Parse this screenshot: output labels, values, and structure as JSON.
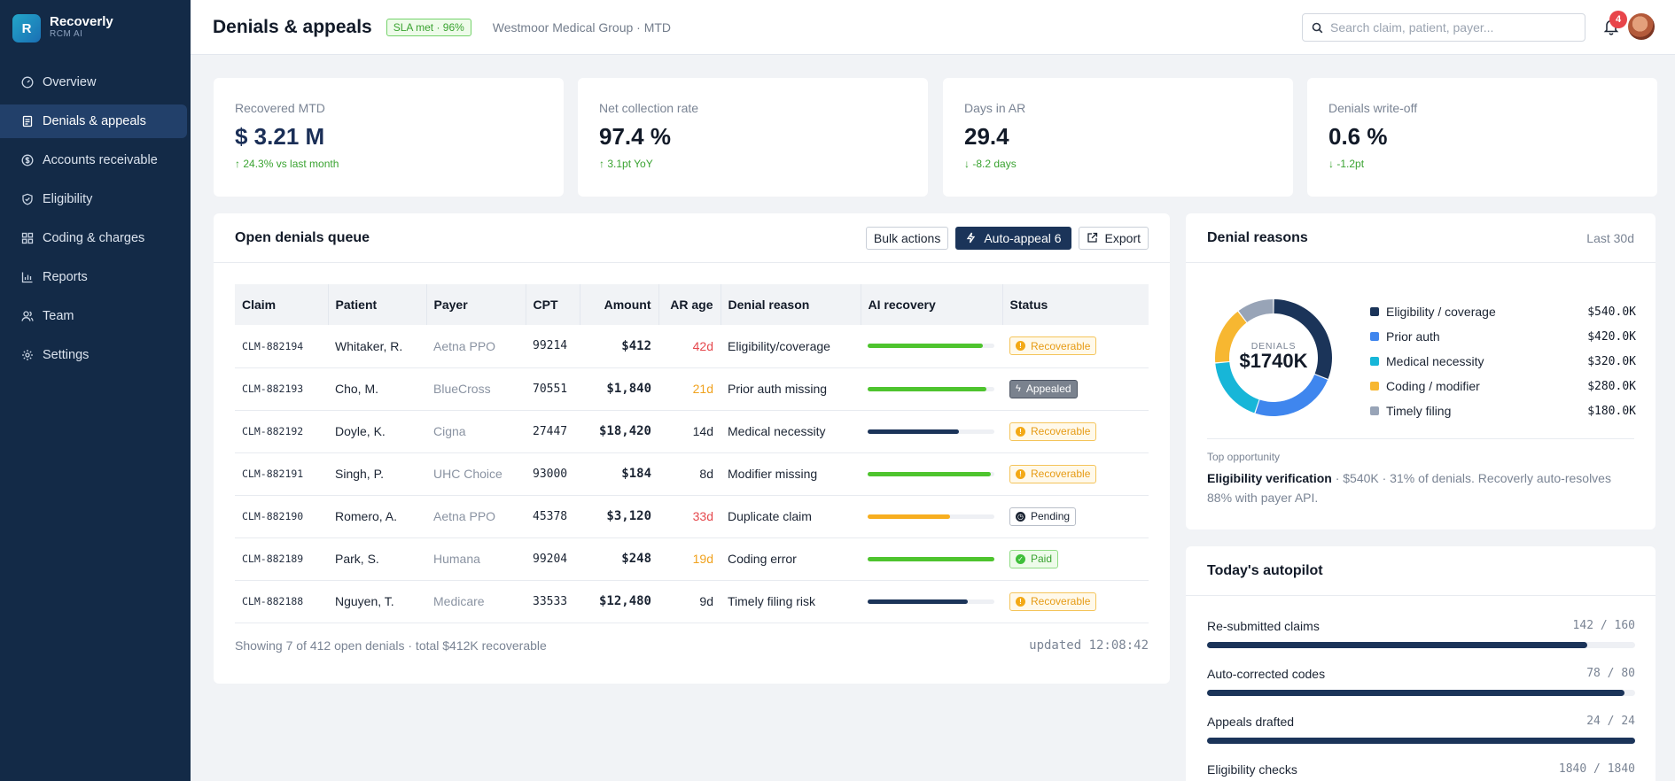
{
  "app": {
    "name": "Recoverly",
    "sub": "RCM AI",
    "logo_letter": "R"
  },
  "sidebar": {
    "items": [
      {
        "label": "Overview",
        "icon": "gauge-icon",
        "active": false
      },
      {
        "label": "Denials & appeals",
        "icon": "document-icon",
        "active": true
      },
      {
        "label": "Accounts receivable",
        "icon": "dollar-icon",
        "active": false
      },
      {
        "label": "Eligibility",
        "icon": "shield-icon",
        "active": false
      },
      {
        "label": "Coding & charges",
        "icon": "grid-icon",
        "active": false
      },
      {
        "label": "Reports",
        "icon": "chart-icon",
        "active": false
      },
      {
        "label": "Team",
        "icon": "users-icon",
        "active": false
      },
      {
        "label": "Settings",
        "icon": "gear-icon",
        "active": false
      }
    ]
  },
  "header": {
    "title": "Denials & appeals",
    "sla_badge": "SLA met · 96%",
    "context": "Westmoor Medical Group · MTD",
    "search_placeholder": "Search claim, patient, payer...",
    "notifications": "4"
  },
  "kpis": [
    {
      "label": "Recovered MTD",
      "value": "$ 3.21 M",
      "delta": "24.3% vs last month",
      "direction": "up"
    },
    {
      "label": "Net collection rate",
      "value": "97.4 %",
      "delta": "3.1pt YoY",
      "direction": "up"
    },
    {
      "label": "Days in AR",
      "value": "29.4",
      "delta": "-8.2 days",
      "direction": "down"
    },
    {
      "label": "Denials write-off",
      "value": "0.6 %",
      "delta": "-1.2pt",
      "direction": "down"
    }
  ],
  "queue": {
    "title": "Open denials queue",
    "bulk_label": "Bulk actions",
    "auto_appeal_label": "Auto-appeal 6",
    "export_label": "Export",
    "columns": [
      "Claim",
      "Patient",
      "Payer",
      "CPT",
      "Amount",
      "AR age",
      "Denial reason",
      "AI recovery",
      "Status"
    ],
    "rows": [
      {
        "claim": "CLM-882194",
        "patient": "Whitaker, R.",
        "payer": "Aetna PPO",
        "cpt": "99214",
        "amount": "$412",
        "age": "42d",
        "age_tone": "red",
        "reason": "Eligibility/coverage",
        "recovery": 0.91,
        "recovery_color": "#4ec42e",
        "status": "Recoverable",
        "status_type": "recoverable"
      },
      {
        "claim": "CLM-882193",
        "patient": "Cho, M.",
        "payer": "BlueCross",
        "cpt": "70551",
        "amount": "$1,840",
        "age": "21d",
        "age_tone": "amber",
        "reason": "Prior auth missing",
        "recovery": 0.94,
        "recovery_color": "#4ec42e",
        "status": "Appealed",
        "status_type": "appealed"
      },
      {
        "claim": "CLM-882192",
        "patient": "Doyle, K.",
        "payer": "Cigna",
        "cpt": "27447",
        "amount": "$18,420",
        "age": "14d",
        "age_tone": "plain",
        "reason": "Medical necessity",
        "recovery": 0.72,
        "recovery_color": "#1b3459",
        "status": "Recoverable",
        "status_type": "recoverable"
      },
      {
        "claim": "CLM-882191",
        "patient": "Singh, P.",
        "payer": "UHC Choice",
        "cpt": "93000",
        "amount": "$184",
        "age": "8d",
        "age_tone": "plain",
        "reason": "Modifier missing",
        "recovery": 0.97,
        "recovery_color": "#4ec42e",
        "status": "Recoverable",
        "status_type": "recoverable"
      },
      {
        "claim": "CLM-882190",
        "patient": "Romero, A.",
        "payer": "Aetna PPO",
        "cpt": "45378",
        "amount": "$3,120",
        "age": "33d",
        "age_tone": "red",
        "reason": "Duplicate claim",
        "recovery": 0.65,
        "recovery_color": "#f7ae1f",
        "status": "Pending",
        "status_type": "pending"
      },
      {
        "claim": "CLM-882189",
        "patient": "Park, S.",
        "payer": "Humana",
        "cpt": "99204",
        "amount": "$248",
        "age": "19d",
        "age_tone": "amber",
        "reason": "Coding error",
        "recovery": 1.0,
        "recovery_color": "#4ec42e",
        "status": "Paid",
        "status_type": "paid"
      },
      {
        "claim": "CLM-882188",
        "patient": "Nguyen, T.",
        "payer": "Medicare",
        "cpt": "33533",
        "amount": "$12,480",
        "age": "9d",
        "age_tone": "plain",
        "reason": "Timely filing risk",
        "recovery": 0.79,
        "recovery_color": "#1b3459",
        "status": "Recoverable",
        "status_type": "recoverable"
      }
    ],
    "footer_summary": "Showing 7 of 412 open denials · total $412K recoverable",
    "footer_updated": "updated 12:08:42"
  },
  "reasons": {
    "title": "Denial reasons",
    "range": "Last 30d",
    "center_label": "DENIALS",
    "center_value": "$1740K",
    "top_label": "Top opportunity",
    "top_title": "Eligibility verification",
    "top_text": " · $540K · 31% of denials. Recoverly auto-resolves 88% with payer API."
  },
  "chart_data": {
    "type": "pie",
    "categories": [
      "Eligibility / coverage",
      "Prior auth",
      "Medical necessity",
      "Coding / modifier",
      "Timely filing"
    ],
    "values": [
      540,
      420,
      320,
      280,
      180
    ],
    "value_labels": [
      "$540.0K",
      "$420.0K",
      "$320.0K",
      "$280.0K",
      "$180.0K"
    ],
    "colors": [
      "#1b3459",
      "#3f86ee",
      "#17b6d8",
      "#f7b731",
      "#98a4b7"
    ],
    "title": "Denial reasons"
  },
  "autopilot": {
    "title": "Today's autopilot",
    "items": [
      {
        "label": "Re-submitted claims",
        "count": "142 / 160",
        "done": 142,
        "total": 160
      },
      {
        "label": "Auto-corrected codes",
        "count": "78 / 80",
        "done": 78,
        "total": 80
      },
      {
        "label": "Appeals drafted",
        "count": "24 / 24",
        "done": 24,
        "total": 24
      },
      {
        "label": "Eligibility checks",
        "count": "1840 / 1840",
        "done": 1840,
        "total": 1840
      }
    ]
  }
}
